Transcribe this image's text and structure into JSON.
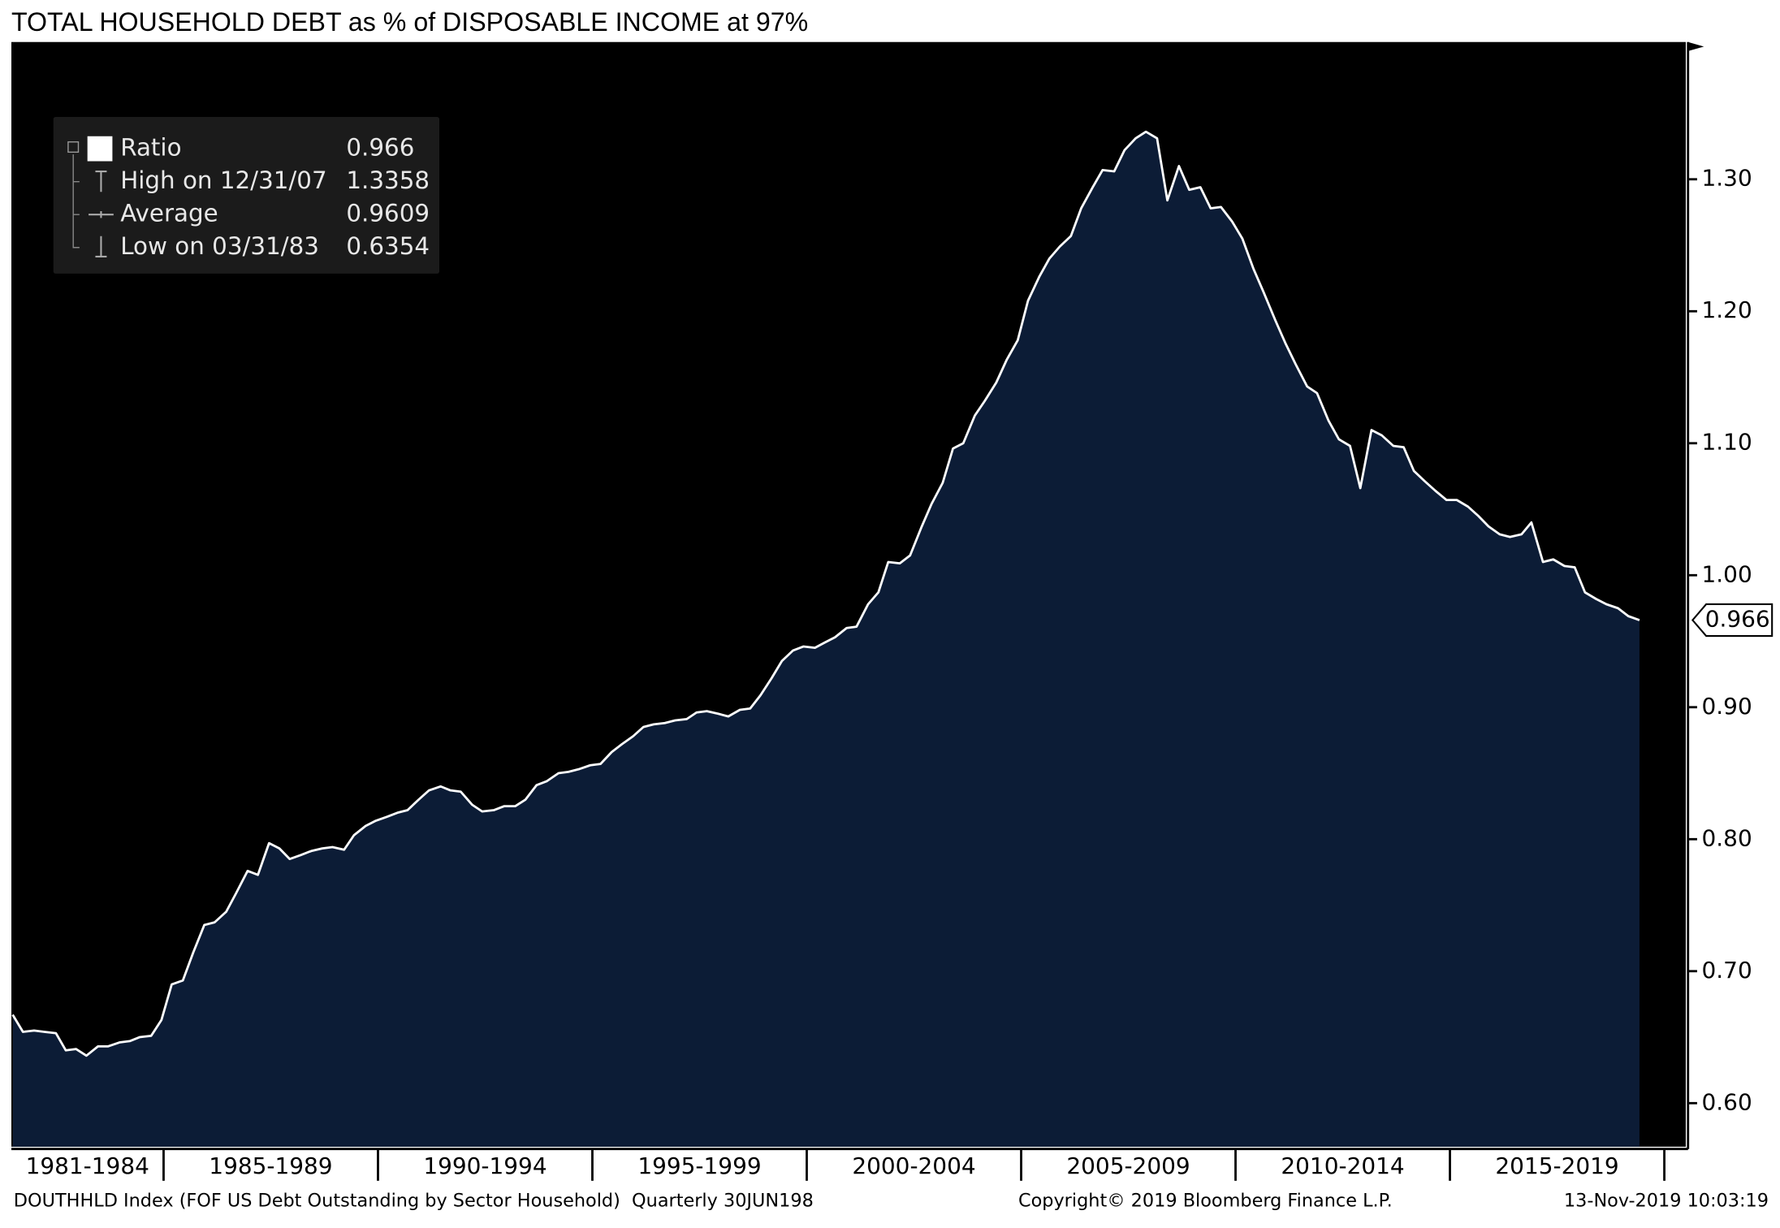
{
  "chart_data": {
    "type": "area",
    "title": "TOTAL HOUSEHOLD DEBT as % of DISPOSABLE INCOME at 97%",
    "x": [
      1981.48,
      1981.72,
      1981.98,
      1982.22,
      1982.49,
      1982.72,
      1982.96,
      1983.2,
      1983.47,
      1983.7,
      1983.97,
      1984.21,
      1984.44,
      1984.71,
      1984.95,
      1985.19,
      1985.45,
      1985.69,
      1985.95,
      1986.19,
      1986.46,
      1986.69,
      1986.96,
      1987.2,
      1987.46,
      1987.7,
      1987.94,
      1988.2,
      1988.44,
      1988.7,
      1988.94,
      1989.21,
      1989.44,
      1989.71,
      1989.95,
      1990.21,
      1990.45,
      1990.69,
      1990.95,
      1991.19,
      1991.46,
      1991.69,
      1991.93,
      1992.2,
      1992.43,
      1992.7,
      1992.94,
      1993.2,
      1993.44,
      1993.7,
      1993.94,
      1994.21,
      1994.44,
      1994.68,
      1994.95,
      1995.19,
      1995.45,
      1995.69,
      1995.95,
      1996.19,
      1996.43,
      1996.69,
      1996.93,
      1997.2,
      1997.43,
      1997.67,
      1997.94,
      1998.17,
      1998.44,
      1998.68,
      1998.92,
      1999.18,
      1999.42,
      1999.68,
      1999.92,
      2000.19,
      2000.42,
      2000.66,
      2000.93,
      2001.16,
      2001.43,
      2001.67,
      2001.9,
      2002.17,
      2002.41,
      2002.67,
      2002.91,
      2003.17,
      2003.41,
      2003.65,
      2003.92,
      2004.15,
      2004.42,
      2004.66,
      2004.92,
      2005.16,
      2005.42,
      2005.66,
      2005.9,
      2006.16,
      2006.4,
      2006.67,
      2006.9,
      2007.17,
      2007.41,
      2007.67,
      2007.91,
      2008.17,
      2008.41,
      2008.68,
      2008.92,
      2009.18,
      2009.42,
      2009.66,
      2009.92,
      2010.16,
      2010.42,
      2010.66,
      2010.93,
      2011.16,
      2011.4,
      2011.67,
      2011.9,
      2012.17,
      2012.41,
      2012.67,
      2012.91,
      2013.17,
      2013.41,
      2013.68,
      2013.92,
      2014.16,
      2014.42,
      2014.66,
      2014.92,
      2015.16,
      2015.42,
      2015.66,
      2015.9,
      2016.16,
      2016.4,
      2016.67,
      2016.9,
      2017.17,
      2017.41,
      2017.67,
      2017.91,
      2018.15,
      2018.41,
      2018.65,
      2018.92,
      2019.16,
      2019.42
    ],
    "series": [
      {
        "name": "Ratio",
        "color": "#0c1c36",
        "line_color": "#ffffff",
        "values": [
          0.667,
          0.654,
          0.655,
          0.654,
          0.653,
          0.64,
          0.641,
          0.636,
          0.643,
          0.643,
          0.646,
          0.647,
          0.65,
          0.651,
          0.663,
          0.69,
          0.693,
          0.714,
          0.735,
          0.737,
          0.745,
          0.759,
          0.776,
          0.773,
          0.797,
          0.793,
          0.785,
          0.788,
          0.791,
          0.793,
          0.794,
          0.792,
          0.803,
          0.81,
          0.814,
          0.817,
          0.82,
          0.822,
          0.83,
          0.837,
          0.84,
          0.837,
          0.836,
          0.826,
          0.821,
          0.822,
          0.825,
          0.825,
          0.83,
          0.841,
          0.844,
          0.85,
          0.851,
          0.853,
          0.856,
          0.857,
          0.866,
          0.872,
          0.878,
          0.885,
          0.887,
          0.888,
          0.89,
          0.891,
          0.896,
          0.897,
          0.895,
          0.893,
          0.898,
          0.899,
          0.909,
          0.922,
          0.935,
          0.943,
          0.946,
          0.945,
          0.949,
          0.953,
          0.96,
          0.961,
          0.978,
          0.987,
          1.01,
          1.009,
          1.015,
          1.036,
          1.054,
          1.07,
          1.096,
          1.1,
          1.121,
          1.132,
          1.146,
          1.163,
          1.178,
          1.208,
          1.226,
          1.24,
          1.249,
          1.257,
          1.278,
          1.294,
          1.307,
          1.306,
          1.322,
          1.331,
          1.336,
          1.331,
          1.284,
          1.31,
          1.292,
          1.294,
          1.278,
          1.279,
          1.268,
          1.255,
          1.232,
          1.214,
          1.193,
          1.176,
          1.16,
          1.143,
          1.138,
          1.117,
          1.103,
          1.098,
          1.066,
          1.11,
          1.106,
          1.098,
          1.097,
          1.079,
          1.071,
          1.064,
          1.057,
          1.057,
          1.052,
          1.045,
          1.037,
          1.031,
          1.029,
          1.031,
          1.04,
          1.01,
          1.012,
          1.007,
          1.006,
          0.987,
          0.982,
          0.978,
          0.975,
          0.969,
          0.966
        ]
      }
    ],
    "xlim": [
      1981.45,
      2020.5
    ],
    "ylim": [
      0.567,
      1.404
    ],
    "yticks": [
      {
        "value": 0.6,
        "label": "0.60"
      },
      {
        "value": 0.7,
        "label": "0.70"
      },
      {
        "value": 0.8,
        "label": "0.80"
      },
      {
        "value": 0.9,
        "label": "0.90"
      },
      {
        "value": 1.0,
        "label": "1.00"
      },
      {
        "value": 1.1,
        "label": "1.10"
      },
      {
        "value": 1.2,
        "label": "1.20"
      },
      {
        "value": 1.3,
        "label": "1.30"
      }
    ],
    "xticks": [
      1985,
      1990,
      1995,
      2000,
      2005,
      2010,
      2015,
      2020
    ],
    "x_labels": [
      "1981-1984",
      "1985-1989",
      "1990-1994",
      "1995-1999",
      "2000-2004",
      "2005-2009",
      "2010-2014",
      "2015-2019"
    ],
    "background": "#000000",
    "legend_position": "top-left",
    "legend": [
      {
        "name": "Ratio",
        "value": 0.966
      },
      {
        "name": "High on 12/31/07",
        "value": 1.3358
      },
      {
        "name": "Average",
        "value": 0.9609
      },
      {
        "name": "Low on 03/31/83",
        "value": 0.6354
      }
    ],
    "footer": {
      "left": "DOUTHHLD Index (FOF US Debt Outstanding by Sector Household)  Quarterly 30JUN198",
      "middle": "Copyright© 2019 Bloomberg Finance L.P.",
      "right": "13-Nov-2019 10:03:19"
    }
  }
}
